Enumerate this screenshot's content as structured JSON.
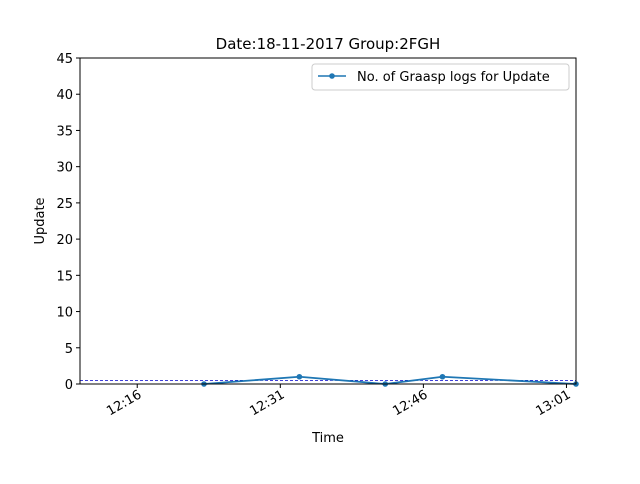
{
  "chart_data": {
    "type": "line",
    "title": "Date:18-11-2017  Group:2FGH",
    "xlabel": "Time",
    "ylabel": "Update",
    "ylim": [
      0,
      45
    ],
    "yticks": [
      0,
      5,
      10,
      15,
      20,
      25,
      30,
      35,
      40,
      45
    ],
    "xlim": [
      "12:10",
      "13:02"
    ],
    "xticks": [
      "12:16",
      "12:31",
      "12:46",
      "13:01"
    ],
    "grid": false,
    "legend_position": "top-right",
    "series": [
      {
        "name": "No. of Graasp logs for Update",
        "color": "#1f77b4",
        "marker": "circle",
        "x": [
          "12:23",
          "12:33",
          "12:42",
          "12:48",
          "13:02"
        ],
        "y": [
          0,
          1,
          0,
          1,
          0
        ]
      }
    ],
    "reference_lines": [
      {
        "y": 0.5,
        "color": "#0000cc",
        "style": "dashed"
      }
    ]
  }
}
